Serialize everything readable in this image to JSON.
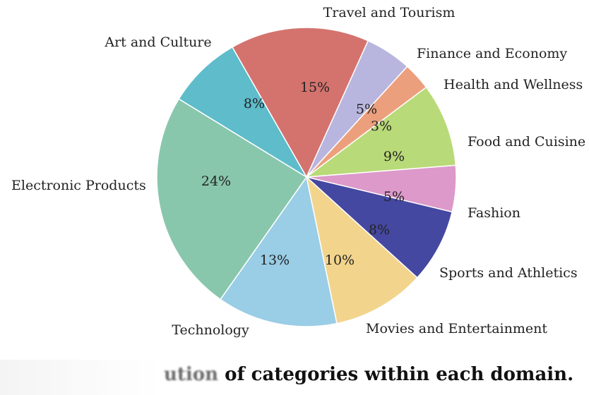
{
  "chart_data": {
    "type": "pie",
    "title": "",
    "slices": [
      {
        "label": "Travel and Tourism",
        "pct_text": "15%",
        "value": 15,
        "color": "#D4736E"
      },
      {
        "label": "Finance and Economy",
        "pct_text": "5%",
        "value": 5,
        "color": "#B8B5DE"
      },
      {
        "label": "Health and Wellness",
        "pct_text": "3%",
        "value": 3,
        "color": "#EC9F7C"
      },
      {
        "label": "Food and Cuisine",
        "pct_text": "9%",
        "value": 9,
        "color": "#B9DA78"
      },
      {
        "label": "Fashion",
        "pct_text": "5%",
        "value": 5,
        "color": "#DC99C9"
      },
      {
        "label": "Sports and Athletics",
        "pct_text": "8%",
        "value": 8,
        "color": "#4548A0"
      },
      {
        "label": "Movies and Entertainment",
        "pct_text": "10%",
        "value": 10,
        "color": "#F2D48C"
      },
      {
        "label": "Technology",
        "pct_text": "13%",
        "value": 13,
        "color": "#9ACDE6"
      },
      {
        "label": "Electronic Products",
        "pct_text": "24%",
        "value": 24,
        "color": "#89C7AD"
      },
      {
        "label": "Art and Culture",
        "pct_text": "8%",
        "value": 8,
        "color": "#5EBCCB"
      }
    ]
  },
  "caption": {
    "blurred_prefix": "ution",
    "text": " of categories within each domain."
  }
}
